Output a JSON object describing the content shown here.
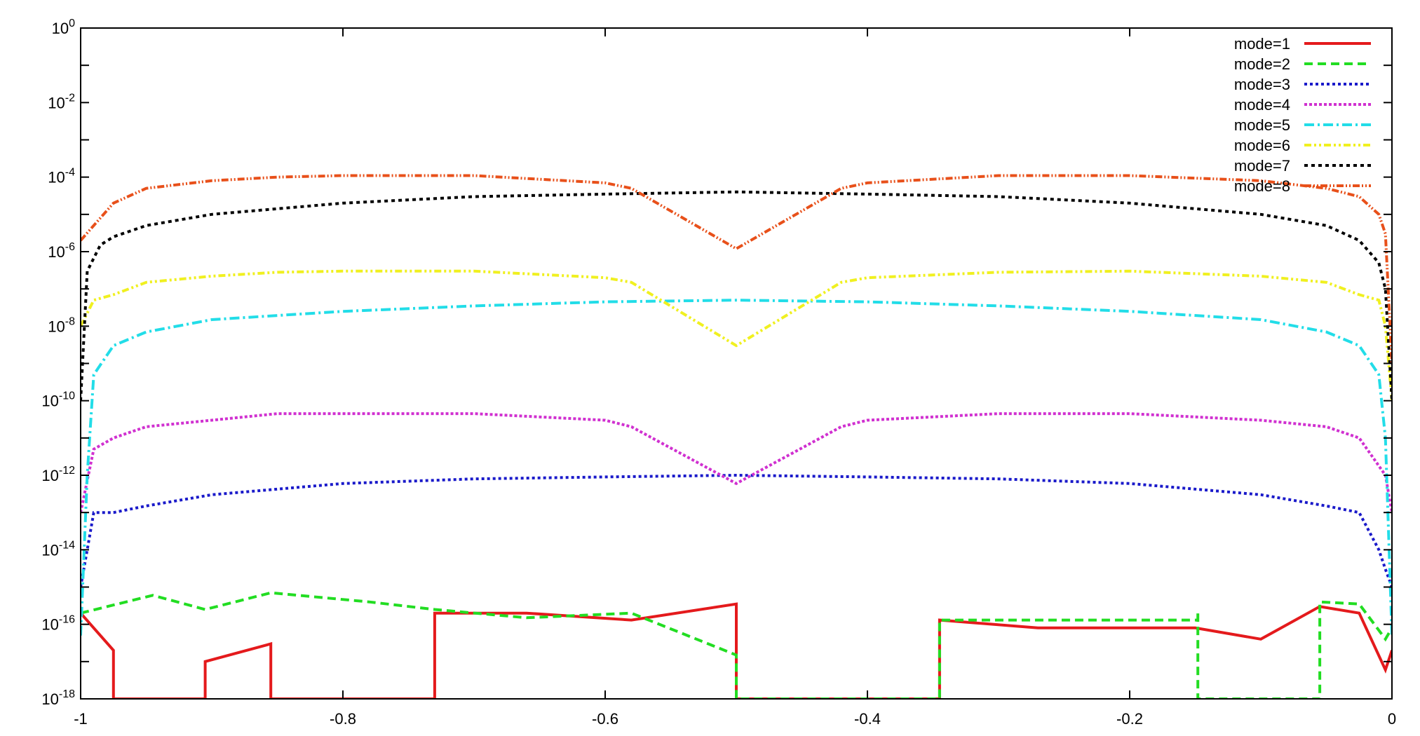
{
  "chart_data": {
    "type": "line",
    "title": "",
    "xlabel": "",
    "ylabel": "",
    "xlim": [
      -1,
      0
    ],
    "ylim": [
      1e-18,
      1
    ],
    "yscale": "log",
    "grid": false,
    "legend_position": "top-right",
    "x_ticks": [
      "-1",
      "-0.8",
      "-0.6",
      "-0.4",
      "-0.2",
      "0"
    ],
    "y_ticks": [
      {
        "base": "10",
        "exp": "0"
      },
      {
        "base": "10",
        "exp": "-2"
      },
      {
        "base": "10",
        "exp": "-4"
      },
      {
        "base": "10",
        "exp": "-6"
      },
      {
        "base": "10",
        "exp": "-8"
      },
      {
        "base": "10",
        "exp": "-10"
      },
      {
        "base": "10",
        "exp": "-12"
      },
      {
        "base": "10",
        "exp": "-14"
      },
      {
        "base": "10",
        "exp": "-16"
      },
      {
        "base": "10",
        "exp": "-18"
      }
    ],
    "series": [
      {
        "name": "mode=1",
        "color": "#e41a1c",
        "dash": "",
        "points": [
          [
            -1,
            2e-16
          ],
          [
            -0.975,
            2e-17
          ],
          [
            -0.975,
            1e-18
          ],
          [
            -0.905,
            1e-18
          ],
          [
            -0.905,
            1e-17
          ],
          [
            -0.855,
            3e-17
          ],
          [
            -0.855,
            1e-18
          ],
          [
            -0.73,
            1e-18
          ],
          [
            -0.73,
            2e-16
          ],
          [
            -0.66,
            2e-16
          ],
          [
            -0.58,
            1.3e-16
          ],
          [
            -0.5,
            3.5e-16
          ],
          [
            -0.5,
            1e-18
          ],
          [
            -0.345,
            1e-18
          ],
          [
            -0.345,
            1.3e-16
          ],
          [
            -0.27,
            8e-17
          ],
          [
            -0.15,
            8e-17
          ],
          [
            -0.1,
            4e-17
          ],
          [
            -0.055,
            3e-16
          ],
          [
            -0.025,
            2e-16
          ],
          [
            -0.005,
            6e-18
          ],
          [
            0,
            2e-17
          ]
        ]
      },
      {
        "name": "mode=2",
        "color": "#22dd22",
        "dash": "12,7",
        "points": [
          [
            -1,
            2e-16
          ],
          [
            -0.945,
            6e-16
          ],
          [
            -0.905,
            2.5e-16
          ],
          [
            -0.855,
            7e-16
          ],
          [
            -0.78,
            4e-16
          ],
          [
            -0.73,
            2.5e-16
          ],
          [
            -0.66,
            1.5e-16
          ],
          [
            -0.58,
            2e-16
          ],
          [
            -0.5,
            1.5e-17
          ],
          [
            -0.5,
            1e-18
          ],
          [
            -0.345,
            1e-18
          ],
          [
            -0.345,
            1.3e-16
          ],
          [
            -0.148,
            1.3e-16
          ],
          [
            -0.148,
            2.2e-16
          ],
          [
            -0.148,
            1e-18
          ],
          [
            -0.055,
            1e-18
          ],
          [
            -0.055,
            4e-16
          ],
          [
            -0.025,
            3.5e-16
          ],
          [
            -0.005,
            4e-17
          ],
          [
            0,
            8e-17
          ]
        ]
      },
      {
        "name": "mode=3",
        "color": "#1a1aca",
        "dash": "4,4",
        "points": [
          [
            -1,
            1e-15
          ],
          [
            -0.995,
            1e-14
          ],
          [
            -0.99,
            1e-13
          ],
          [
            -0.975,
            1e-13
          ],
          [
            -0.95,
            1.5e-13
          ],
          [
            -0.9,
            3e-13
          ],
          [
            -0.8,
            6e-13
          ],
          [
            -0.7,
            8e-13
          ],
          [
            -0.6,
            9e-13
          ],
          [
            -0.5,
            1e-12
          ],
          [
            -0.4,
            9e-13
          ],
          [
            -0.3,
            8e-13
          ],
          [
            -0.2,
            6e-13
          ],
          [
            -0.1,
            3e-13
          ],
          [
            -0.05,
            1.5e-13
          ],
          [
            -0.025,
            1e-13
          ],
          [
            -0.01,
            1e-14
          ],
          [
            -0.005,
            3e-15
          ],
          [
            0,
            1e-15
          ]
        ]
      },
      {
        "name": "mode=4",
        "color": "#d030d0",
        "dash": "4,3",
        "points": [
          [
            -1,
            1e-13
          ],
          [
            -0.99,
            5e-12
          ],
          [
            -0.975,
            1e-11
          ],
          [
            -0.95,
            2e-11
          ],
          [
            -0.9,
            3e-11
          ],
          [
            -0.85,
            4.5e-11
          ],
          [
            -0.7,
            4.5e-11
          ],
          [
            -0.6,
            3e-11
          ],
          [
            -0.58,
            2e-11
          ],
          [
            -0.5,
            6e-13
          ],
          [
            -0.42,
            2e-11
          ],
          [
            -0.4,
            3e-11
          ],
          [
            -0.3,
            4.5e-11
          ],
          [
            -0.2,
            4.5e-11
          ],
          [
            -0.1,
            3e-11
          ],
          [
            -0.05,
            2e-11
          ],
          [
            -0.025,
            1e-11
          ],
          [
            -0.005,
            1e-12
          ],
          [
            0,
            1e-13
          ]
        ]
      },
      {
        "name": "mode=5",
        "color": "#22dde8",
        "dash": "14,5,3,5",
        "points": [
          [
            -1,
            5e-17
          ],
          [
            -0.995,
            1e-12
          ],
          [
            -0.99,
            5e-10
          ],
          [
            -0.975,
            3e-09
          ],
          [
            -0.95,
            7e-09
          ],
          [
            -0.9,
            1.5e-08
          ],
          [
            -0.8,
            2.5e-08
          ],
          [
            -0.7,
            3.5e-08
          ],
          [
            -0.6,
            4.5e-08
          ],
          [
            -0.5,
            5e-08
          ],
          [
            -0.4,
            4.5e-08
          ],
          [
            -0.3,
            3.5e-08
          ],
          [
            -0.2,
            2.5e-08
          ],
          [
            -0.1,
            1.5e-08
          ],
          [
            -0.05,
            7e-09
          ],
          [
            -0.025,
            3e-09
          ],
          [
            -0.01,
            5e-10
          ],
          [
            -0.005,
            1e-11
          ],
          [
            0,
            5e-17
          ]
        ]
      },
      {
        "name": "mode=6",
        "color": "#f0f020",
        "dash": "10,4,3,4,3,4",
        "points": [
          [
            -1,
            1e-08
          ],
          [
            -0.99,
            5e-08
          ],
          [
            -0.975,
            7e-08
          ],
          [
            -0.95,
            1.5e-07
          ],
          [
            -0.9,
            2.2e-07
          ],
          [
            -0.85,
            2.8e-07
          ],
          [
            -0.8,
            3e-07
          ],
          [
            -0.7,
            3e-07
          ],
          [
            -0.6,
            2e-07
          ],
          [
            -0.58,
            1.5e-07
          ],
          [
            -0.5,
            3e-09
          ],
          [
            -0.42,
            1.5e-07
          ],
          [
            -0.4,
            2e-07
          ],
          [
            -0.3,
            2.8e-07
          ],
          [
            -0.2,
            3e-07
          ],
          [
            -0.1,
            2.2e-07
          ],
          [
            -0.05,
            1.5e-07
          ],
          [
            -0.025,
            7e-08
          ],
          [
            -0.01,
            5e-08
          ],
          [
            -0.005,
            1e-08
          ],
          [
            0,
            1e-10
          ]
        ]
      },
      {
        "name": "mode=7",
        "color": "#000000",
        "dash": "5,5",
        "points": [
          [
            -1,
            1e-10
          ],
          [
            -0.995,
            3e-07
          ],
          [
            -0.985,
            1.5e-06
          ],
          [
            -0.975,
            2.5e-06
          ],
          [
            -0.95,
            5e-06
          ],
          [
            -0.9,
            1e-05
          ],
          [
            -0.8,
            2e-05
          ],
          [
            -0.7,
            3e-05
          ],
          [
            -0.6,
            3.5e-05
          ],
          [
            -0.5,
            4e-05
          ],
          [
            -0.4,
            3.5e-05
          ],
          [
            -0.3,
            3e-05
          ],
          [
            -0.2,
            2e-05
          ],
          [
            -0.1,
            1e-05
          ],
          [
            -0.05,
            5e-06
          ],
          [
            -0.025,
            2e-06
          ],
          [
            -0.01,
            5e-07
          ],
          [
            -0.005,
            1e-07
          ],
          [
            0,
            1e-10
          ]
        ]
      },
      {
        "name": "mode=8",
        "color": "#e8501a",
        "dash": "10,3,2,3,2,3",
        "points": [
          [
            -1,
            2e-06
          ],
          [
            -0.975,
            2e-05
          ],
          [
            -0.95,
            5e-05
          ],
          [
            -0.9,
            8e-05
          ],
          [
            -0.85,
            0.0001
          ],
          [
            -0.8,
            0.00011
          ],
          [
            -0.7,
            0.00011
          ],
          [
            -0.6,
            7e-05
          ],
          [
            -0.58,
            5e-05
          ],
          [
            -0.5,
            1.2e-06
          ],
          [
            -0.42,
            5e-05
          ],
          [
            -0.4,
            7e-05
          ],
          [
            -0.3,
            0.00011
          ],
          [
            -0.2,
            0.00011
          ],
          [
            -0.1,
            8e-05
          ],
          [
            -0.05,
            5e-05
          ],
          [
            -0.025,
            3e-05
          ],
          [
            -0.01,
            1e-05
          ],
          [
            -0.005,
            3e-06
          ],
          [
            0,
            1e-09
          ]
        ]
      }
    ]
  }
}
